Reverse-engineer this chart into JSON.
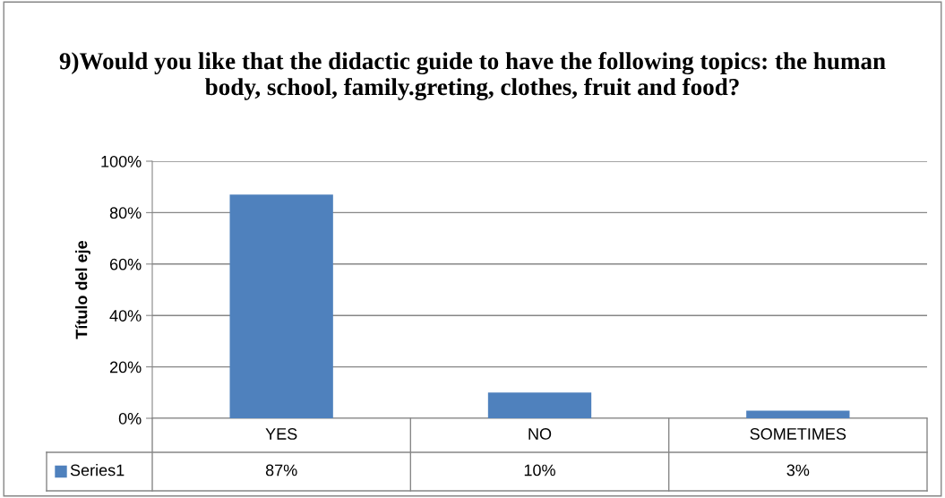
{
  "chart_data": {
    "type": "bar",
    "title": "9)Would you like that the didactic guide to have the following topics: the human body, school, family.greting, clothes, fruit and food?",
    "ylabel": "Título del eje",
    "categories": [
      "YES",
      "NO",
      "SOMETIMES"
    ],
    "series": [
      {
        "name": "Series1",
        "color": "#4f81bd",
        "values": [
          87,
          10,
          3
        ],
        "value_labels": [
          "87%",
          "10%",
          "3%"
        ]
      }
    ],
    "ylim": [
      0,
      100
    ],
    "yticks": [
      {
        "value": 0,
        "label": "0%"
      },
      {
        "value": 20,
        "label": "20%"
      },
      {
        "value": 40,
        "label": "40%"
      },
      {
        "value": 60,
        "label": "60%"
      },
      {
        "value": 80,
        "label": "80%"
      },
      {
        "value": 100,
        "label": "100%"
      }
    ],
    "grid": "y",
    "legend": "bottom"
  }
}
